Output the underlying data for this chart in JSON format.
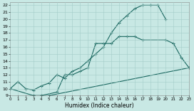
{
  "xlabel": "Humidex (Indice chaleur)",
  "bg_color": "#c8e8e4",
  "grid_color": "#a4ccc8",
  "line_color": "#1a6860",
  "xlim": [
    0,
    23
  ],
  "ylim": [
    9,
    22.4
  ],
  "line1_x": [
    0,
    1,
    2,
    3,
    4,
    5,
    6,
    7,
    8,
    9,
    10,
    11,
    12,
    13,
    14,
    15,
    16,
    17,
    18,
    19,
    20
  ],
  "line1_y": [
    10.0,
    11.0,
    10.0,
    9.8,
    10.4,
    10.8,
    12.0,
    11.5,
    12.5,
    13.0,
    14.0,
    15.0,
    16.0,
    18.0,
    19.5,
    20.5,
    21.5,
    22.0,
    22.0,
    22.0,
    20.0
  ],
  "line2_x": [
    3,
    4,
    6,
    7,
    8,
    9,
    10,
    11,
    12,
    13,
    14,
    15,
    16,
    17,
    20,
    21,
    22,
    23
  ],
  "line2_y": [
    9.0,
    9.0,
    9.5,
    12.0,
    12.0,
    12.5,
    13.0,
    16.5,
    16.5,
    16.5,
    17.5,
    17.5,
    17.5,
    17.0,
    17.0,
    16.5,
    14.5,
    13.0
  ],
  "line3_x": [
    0,
    3,
    4,
    5,
    23
  ],
  "line3_y": [
    10.0,
    9.0,
    9.0,
    9.0,
    13.0
  ]
}
